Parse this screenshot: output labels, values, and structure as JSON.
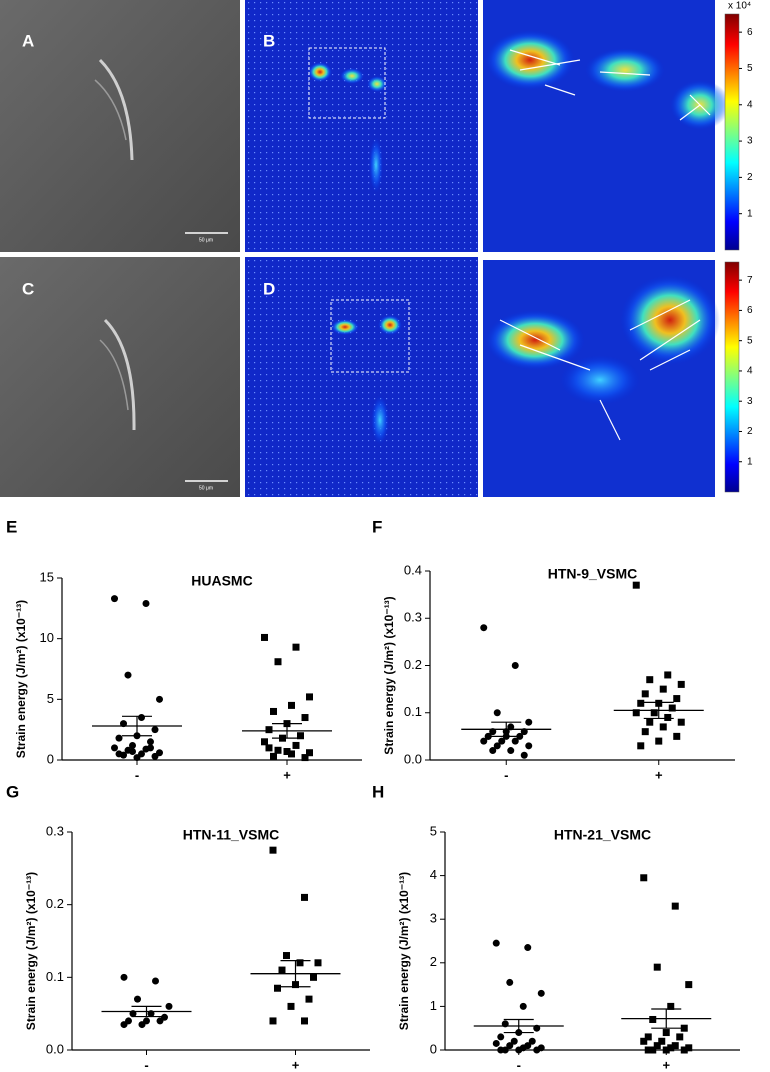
{
  "image_panels": {
    "letters": [
      "A",
      "B",
      "C",
      "D"
    ],
    "scale_bar_labels": [
      "50 μm",
      "50 μm"
    ],
    "colorbars": [
      {
        "label": "x 10⁴",
        "range": [
          0,
          6.5
        ],
        "ticks": [
          1,
          2,
          3,
          4,
          5,
          6
        ]
      },
      {
        "range": [
          0,
          7.6
        ],
        "ticks": [
          1,
          2,
          3,
          4,
          5,
          6,
          7
        ]
      }
    ]
  },
  "chart_data": [
    {
      "type": "scatter",
      "panel": "E",
      "title": "HUASMC",
      "ylabel": "Strain energy (J/m²) (x10⁻¹³)",
      "categories": [
        "-",
        "+"
      ],
      "ylim": [
        0,
        15
      ],
      "yticks": [
        0,
        5,
        10,
        15
      ],
      "groups": [
        {
          "marker": "circle",
          "values": [
            13.3,
            12.9,
            7.0,
            5.0,
            3.5,
            3.0,
            2.5,
            2.0,
            1.8,
            1.5,
            1.2,
            1.0,
            0.9,
            0.8,
            0.6,
            0.5,
            0.4,
            0.3,
            0.2,
            0.5,
            1.0,
            0.7
          ],
          "mean": 2.8,
          "error": 0.8
        },
        {
          "marker": "square",
          "values": [
            10.1,
            9.3,
            8.1,
            5.2,
            4.5,
            4.0,
            3.5,
            3.0,
            2.5,
            2.0,
            1.8,
            1.5,
            1.2,
            0.8,
            0.6,
            0.5,
            0.3,
            0.2,
            0.7,
            1.0
          ],
          "mean": 2.4,
          "error": 0.6
        }
      ]
    },
    {
      "type": "scatter",
      "panel": "F",
      "title": "HTN-9_VSMC",
      "ylabel": "Strain energy (J/m²) (x10⁻¹³)",
      "categories": [
        "-",
        "+"
      ],
      "ylim": [
        0,
        0.4
      ],
      "yticks": [
        {
          "value": 0,
          "label": "0.0"
        },
        0.1,
        0.2,
        0.3,
        0.4
      ],
      "groups": [
        {
          "marker": "circle",
          "values": [
            0.28,
            0.2,
            0.1,
            0.08,
            0.07,
            0.06,
            0.06,
            0.05,
            0.05,
            0.05,
            0.04,
            0.04,
            0.04,
            0.03,
            0.03,
            0.02,
            0.02,
            0.01,
            0.06,
            0.05
          ],
          "mean": 0.065,
          "error": 0.015
        },
        {
          "marker": "square",
          "values": [
            0.37,
            0.18,
            0.17,
            0.16,
            0.15,
            0.14,
            0.13,
            0.12,
            0.12,
            0.11,
            0.1,
            0.1,
            0.09,
            0.08,
            0.08,
            0.07,
            0.06,
            0.05,
            0.04,
            0.03
          ],
          "mean": 0.105,
          "error": 0.017
        }
      ]
    },
    {
      "type": "scatter",
      "panel": "G",
      "title": "HTN-11_VSMC",
      "ylabel": "Strain energy (J/m²) (x10⁻¹³)",
      "categories": [
        "-",
        "+"
      ],
      "ylim": [
        0,
        0.3
      ],
      "yticks": [
        {
          "value": 0,
          "label": "0.0"
        },
        0.1,
        0.2,
        0.3
      ],
      "groups": [
        {
          "marker": "circle",
          "values": [
            0.1,
            0.095,
            0.07,
            0.06,
            0.05,
            0.05,
            0.045,
            0.04,
            0.04,
            0.04,
            0.035,
            0.035
          ],
          "mean": 0.053,
          "error": 0.007
        },
        {
          "marker": "square",
          "values": [
            0.275,
            0.21,
            0.13,
            0.12,
            0.12,
            0.11,
            0.1,
            0.09,
            0.085,
            0.07,
            0.06,
            0.04,
            0.04
          ],
          "mean": 0.105,
          "error": 0.018
        }
      ]
    },
    {
      "type": "scatter",
      "panel": "H",
      "title": "HTN-21_VSMC",
      "ylabel": "Strain energy (J/m²) (x10⁻¹³)",
      "categories": [
        "-",
        "+"
      ],
      "ylim": [
        0,
        5
      ],
      "yticks": [
        0,
        1,
        2,
        3,
        4,
        5
      ],
      "groups": [
        {
          "marker": "circle",
          "values": [
            2.45,
            2.35,
            1.55,
            1.3,
            1.0,
            0.6,
            0.5,
            0.4,
            0.3,
            0.2,
            0.2,
            0.15,
            0.1,
            0.1,
            0.05,
            0.05,
            0.0,
            0.0,
            0.0,
            0.0
          ],
          "mean": 0.55,
          "error": 0.15
        },
        {
          "marker": "square",
          "values": [
            3.95,
            3.3,
            1.9,
            1.5,
            1.0,
            0.7,
            0.5,
            0.4,
            0.3,
            0.3,
            0.2,
            0.2,
            0.1,
            0.1,
            0.05,
            0.05,
            0.0,
            0.0,
            0.0,
            0.0
          ],
          "mean": 0.72,
          "error": 0.22
        }
      ]
    }
  ]
}
